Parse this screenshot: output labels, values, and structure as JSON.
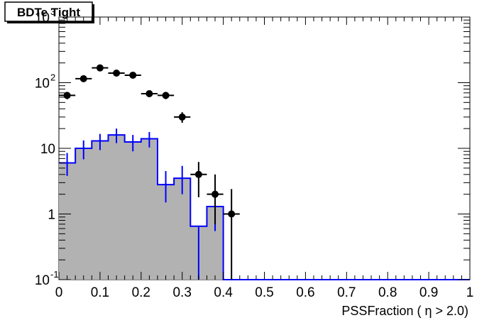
{
  "chart_data": {
    "type": "histogram",
    "title": "BDTe Tight",
    "xlabel": "PSSFraction ( η > 2.0)",
    "ylabel": "",
    "xlim": [
      0,
      1
    ],
    "ylim": [
      0.1,
      1000
    ],
    "yscale": "log",
    "grid": false,
    "x_ticks": [
      "0",
      "0.1",
      "0.2",
      "0.3",
      "0.4",
      "0.5",
      "0.6",
      "0.7",
      "0.8",
      "0.9",
      "1"
    ],
    "y_ticks": [
      {
        "value": 0.1,
        "base": "10",
        "exp": "-1"
      },
      {
        "value": 1,
        "base": "1",
        "exp": ""
      },
      {
        "value": 10,
        "base": "10",
        "exp": ""
      },
      {
        "value": 100,
        "base": "10",
        "exp": "2"
      },
      {
        "value": 1000,
        "base": "10",
        "exp": "3"
      }
    ],
    "bin_width": 0.04,
    "bin_edges_start": 0,
    "series": [
      {
        "style": "filled-histogram",
        "fill_color": "#b2b2b2",
        "line_color": "#0000ff",
        "values": [
          6,
          10,
          13,
          16,
          12.5,
          14,
          2.8,
          3.5,
          0.65,
          1.3,
          0.1,
          0.1,
          0.1,
          0.1,
          0.1,
          0.1,
          0.1,
          0.1,
          0.1,
          0.1,
          0.1,
          0.1,
          0.1,
          0.1,
          0.1
        ],
        "errors_low": [
          2.2,
          3.2,
          3.6,
          4.0,
          3.5,
          3.7,
          1.3,
          1.5,
          0.6,
          0.75,
          0,
          0,
          0,
          0,
          0,
          0,
          0,
          0,
          0,
          0,
          0,
          0,
          0,
          0,
          0
        ],
        "errors_high": [
          2.5,
          3.2,
          3.6,
          4.0,
          3.5,
          3.7,
          1.7,
          1.9,
          0.0,
          0.0,
          0,
          0,
          0,
          0,
          0,
          0,
          0,
          0,
          0,
          0,
          0,
          0,
          0,
          0,
          0
        ]
      },
      {
        "style": "points",
        "color": "#000000",
        "x": [
          0.02,
          0.06,
          0.1,
          0.14,
          0.18,
          0.22,
          0.26,
          0.3,
          0.34,
          0.38,
          0.42
        ],
        "values": [
          64,
          115,
          168,
          140,
          130,
          68,
          64,
          30,
          4,
          2,
          1
        ],
        "errors_low": [
          8,
          11,
          13,
          12,
          11,
          8,
          8,
          5.5,
          2.2,
          1.3,
          0.9
        ],
        "errors_high": [
          8,
          11,
          13,
          12,
          11,
          8,
          8,
          5.5,
          2.2,
          2.0,
          1.4
        ]
      }
    ]
  }
}
